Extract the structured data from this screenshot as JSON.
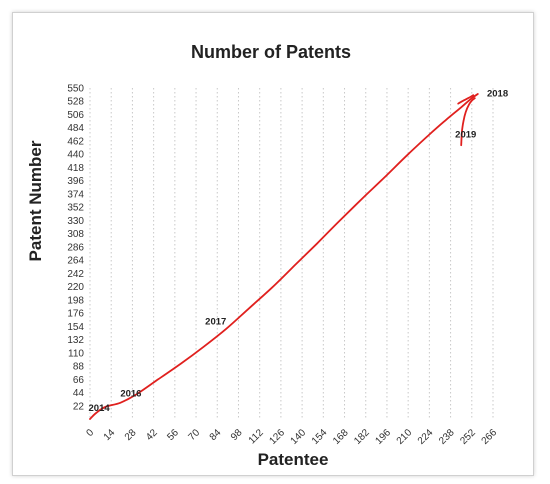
{
  "chart_data": {
    "type": "line",
    "title": "Number of Patents",
    "xlabel": "Patentee",
    "ylabel": "Patent Number",
    "xlim": [
      0,
      266
    ],
    "ylim": [
      0,
      550
    ],
    "x_ticks": [
      0,
      14,
      28,
      42,
      56,
      70,
      84,
      98,
      112,
      126,
      140,
      154,
      168,
      182,
      196,
      210,
      224,
      238,
      252,
      266
    ],
    "y_ticks": [
      22,
      44,
      66,
      88,
      110,
      132,
      154,
      176,
      198,
      220,
      242,
      264,
      286,
      308,
      330,
      352,
      374,
      396,
      418,
      440,
      462,
      484,
      506,
      528,
      550
    ],
    "grid": "vertical dotted",
    "line_color": "#e0201e",
    "series": [
      {
        "x": [
          0,
          4,
          10,
          20,
          30,
          45,
          60,
          75,
          90,
          105,
          120,
          135,
          150,
          165,
          180,
          195,
          210,
          225,
          235,
          245,
          252,
          256
        ],
        "y": [
          0,
          10,
          20,
          27,
          40,
          66,
          92,
          120,
          150,
          184,
          218,
          255,
          292,
          330,
          367,
          403,
          440,
          475,
          497,
          518,
          533,
          540
        ]
      },
      {
        "x": [
          243,
          245,
          248,
          251,
          253
        ],
        "y": [
          524,
          527,
          531,
          535,
          538
        ]
      },
      {
        "x": [
          245,
          245.5,
          246.5,
          248,
          250,
          252,
          254
        ],
        "y": [
          455,
          477,
          495,
          510,
          522,
          529,
          533
        ]
      }
    ],
    "annotations": [
      {
        "text": "2014",
        "x": 6,
        "y": 13
      },
      {
        "text": "2016",
        "x": 27,
        "y": 37
      },
      {
        "text": "2017",
        "x": 83,
        "y": 157
      },
      {
        "text": "2018",
        "x": 269,
        "y": 536
      },
      {
        "text": "2019",
        "x": 248,
        "y": 468
      }
    ]
  }
}
